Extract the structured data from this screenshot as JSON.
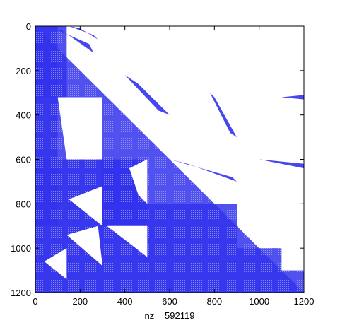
{
  "chart_data": {
    "type": "heatmap",
    "subtype": "sparsity-pattern",
    "xlabel": "nz = 592119",
    "ylabel": "",
    "title": "",
    "xlim": [
      0,
      1200
    ],
    "ylim": [
      1200,
      0
    ],
    "x_ticks": [
      0,
      200,
      400,
      600,
      800,
      1000,
      1200
    ],
    "y_ticks": [
      0,
      200,
      400,
      600,
      800,
      1000,
      1200
    ],
    "x_tick_labels": [
      "0",
      "200",
      "400",
      "600",
      "800",
      "1000",
      "1200"
    ],
    "y_tick_labels": [
      "0",
      "200",
      "400",
      "600",
      "800",
      "1000",
      "1200"
    ],
    "grid": false,
    "marker_color": "#3333ee",
    "nz": 592119,
    "regions_note": "approximate filled regions of the sparsity pattern, matrix coordinates [col_start, row_start, col_end, row_end]",
    "dense_blocks": [
      [
        0,
        0,
        140,
        320
      ],
      [
        0,
        0,
        100,
        900
      ],
      [
        0,
        600,
        500,
        900
      ],
      [
        0,
        900,
        300,
        1200
      ],
      [
        140,
        320,
        300,
        600
      ],
      [
        300,
        600,
        500,
        1200
      ],
      [
        500,
        800,
        900,
        1200
      ],
      [
        900,
        1000,
        1100,
        1200
      ],
      [
        1100,
        1100,
        1200,
        1200
      ]
    ],
    "lower_triangle": [
      [
        0,
        0
      ],
      [
        0,
        1200
      ],
      [
        1200,
        1200
      ]
    ],
    "off_diagonal_bands": [
      [
        [
          20,
          0
        ],
        [
          120,
          20
        ],
        [
          260,
          120
        ],
        [
          240,
          80
        ],
        [
          60,
          0
        ]
      ],
      [
        [
          150,
          0
        ],
        [
          200,
          10
        ],
        [
          280,
          60
        ],
        [
          260,
          40
        ]
      ],
      [
        [
          400,
          220
        ],
        [
          460,
          260
        ],
        [
          600,
          400
        ],
        [
          550,
          380
        ]
      ],
      [
        [
          600,
          600
        ],
        [
          680,
          620
        ],
        [
          900,
          700
        ],
        [
          880,
          680
        ]
      ],
      [
        [
          780,
          300
        ],
        [
          800,
          320
        ],
        [
          900,
          500
        ],
        [
          870,
          480
        ]
      ],
      [
        [
          1000,
          600
        ],
        [
          1200,
          640
        ],
        [
          1200,
          620
        ]
      ],
      [
        [
          1100,
          320
        ],
        [
          1200,
          330
        ],
        [
          1200,
          310
        ]
      ]
    ]
  }
}
